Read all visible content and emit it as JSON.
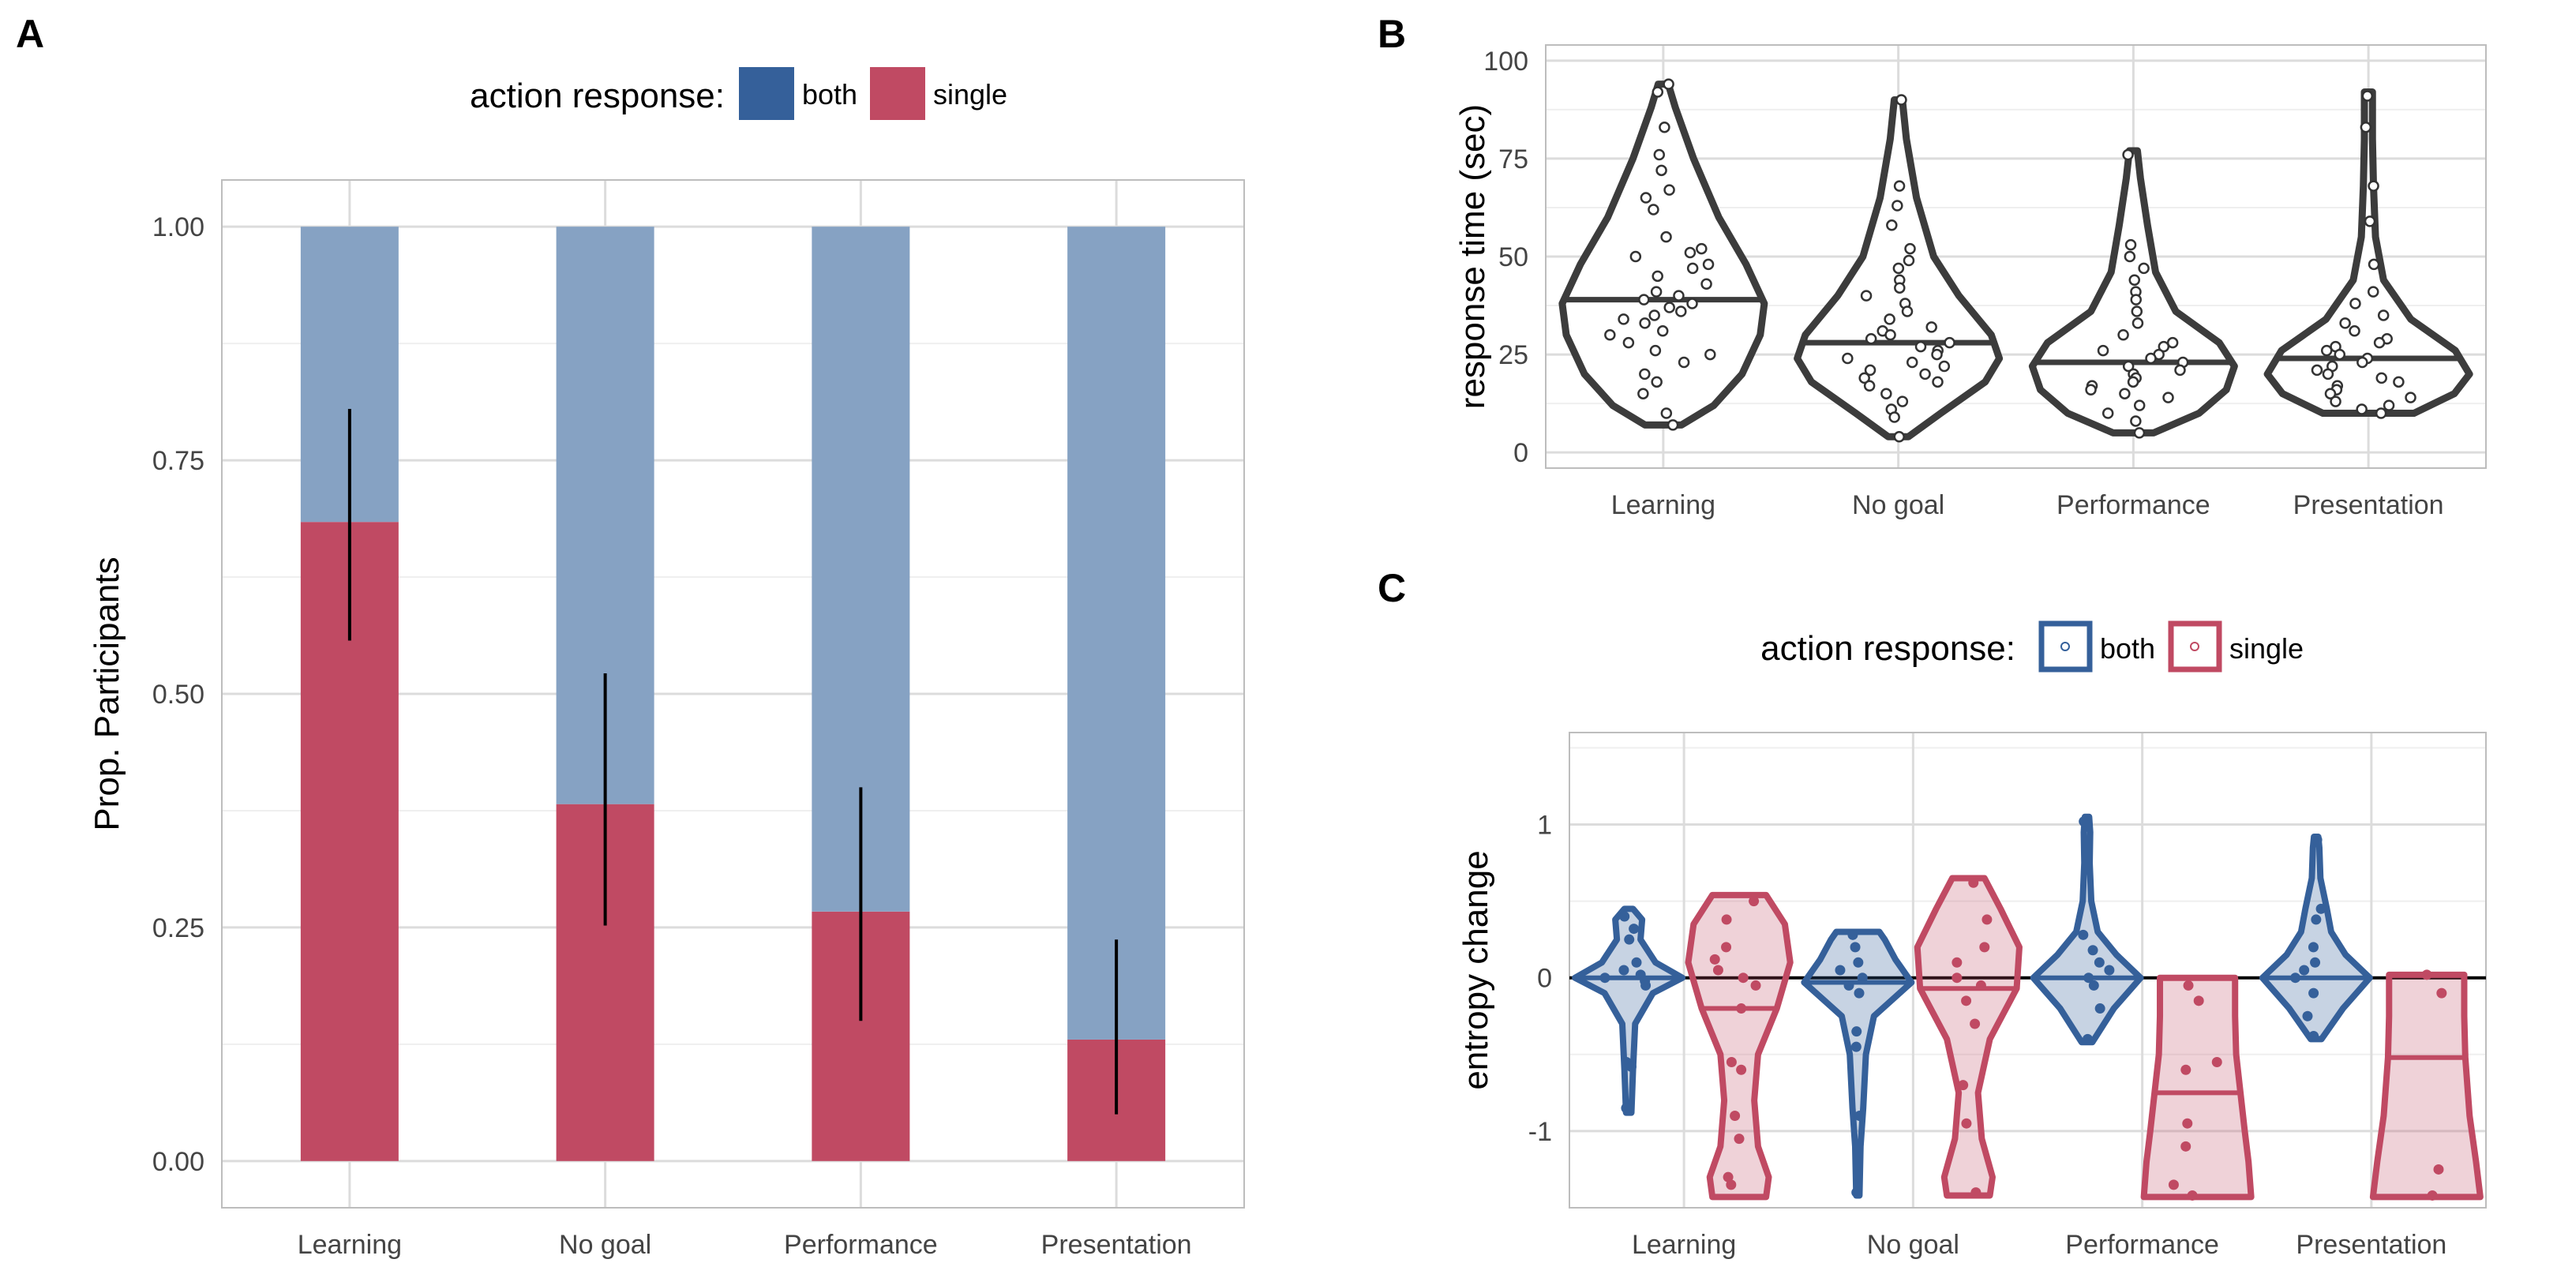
{
  "colors": {
    "both": "#35609A",
    "single": "#C04A63",
    "both_light": "#86A2C3",
    "grid": "#DCDCDC",
    "violin": "#3C3C3C"
  },
  "chart_data": [
    {
      "panel": "A",
      "type": "bar",
      "stacked": true,
      "legend": {
        "title": "action response:",
        "position": "top",
        "entries": [
          "both",
          "single"
        ]
      },
      "categories": [
        "Learning",
        "No goal",
        "Performance",
        "Presentation"
      ],
      "series": [
        {
          "name": "single",
          "values": [
            0.684,
            0.382,
            0.267,
            0.13
          ]
        },
        {
          "name": "both",
          "values": [
            0.316,
            0.618,
            0.733,
            0.87
          ]
        }
      ],
      "error_bars": [
        {
          "category": "Learning",
          "low": 0.557,
          "high": 0.805
        },
        {
          "category": "No goal",
          "low": 0.252,
          "high": 0.522
        },
        {
          "category": "Performance",
          "low": 0.15,
          "high": 0.4
        },
        {
          "category": "Presentation",
          "low": 0.05,
          "high": 0.237
        }
      ],
      "ylabel": "Prop. Participants",
      "ylim": [
        -0.05,
        1.05
      ],
      "yticks": [
        "0.00",
        "0.25",
        "0.50",
        "0.75",
        "1.00"
      ],
      "grid": true
    },
    {
      "panel": "B",
      "type": "violin",
      "categories": [
        "Learning",
        "No goal",
        "Performance",
        "Presentation"
      ],
      "ylabel": "response time (sec)",
      "ylim": [
        -4,
        104
      ],
      "yticks": [
        "0",
        "25",
        "50",
        "75",
        "100"
      ],
      "grid": true,
      "violins": [
        {
          "category": "Learning",
          "min": 7,
          "max": 94,
          "median": 39,
          "profile": [
            [
              7,
              0.18
            ],
            [
              12,
              0.5
            ],
            [
              20,
              0.78
            ],
            [
              30,
              0.96
            ],
            [
              38,
              1.0
            ],
            [
              48,
              0.82
            ],
            [
              60,
              0.55
            ],
            [
              75,
              0.3
            ],
            [
              88,
              0.12
            ],
            [
              94,
              0.05
            ]
          ]
        },
        {
          "category": "No goal",
          "min": 4,
          "max": 90,
          "median": 28,
          "profile": [
            [
              4,
              0.1
            ],
            [
              10,
              0.42
            ],
            [
              18,
              0.86
            ],
            [
              24,
              1.0
            ],
            [
              30,
              0.92
            ],
            [
              40,
              0.6
            ],
            [
              50,
              0.35
            ],
            [
              65,
              0.18
            ],
            [
              80,
              0.08
            ],
            [
              90,
              0.04
            ]
          ]
        },
        {
          "category": "Performance",
          "min": 5,
          "max": 77,
          "median": 23,
          "profile": [
            [
              5,
              0.2
            ],
            [
              10,
              0.65
            ],
            [
              16,
              0.92
            ],
            [
              22,
              1.0
            ],
            [
              28,
              0.85
            ],
            [
              36,
              0.42
            ],
            [
              46,
              0.22
            ],
            [
              58,
              0.14
            ],
            [
              70,
              0.07
            ],
            [
              77,
              0.04
            ]
          ]
        },
        {
          "category": "Presentation",
          "min": 10,
          "max": 92,
          "median": 24,
          "profile": [
            [
              10,
              0.45
            ],
            [
              15,
              0.85
            ],
            [
              20,
              1.0
            ],
            [
              26,
              0.86
            ],
            [
              34,
              0.42
            ],
            [
              44,
              0.15
            ],
            [
              55,
              0.07
            ],
            [
              68,
              0.05
            ],
            [
              80,
              0.04
            ],
            [
              92,
              0.04
            ]
          ]
        }
      ],
      "points": {
        "Learning": [
          94,
          92,
          83,
          76,
          72,
          67,
          65,
          62,
          55,
          52,
          51,
          50,
          48,
          47,
          45,
          43,
          41,
          40,
          39,
          38,
          37,
          36,
          35,
          34,
          33,
          31,
          30,
          28,
          26,
          25,
          23,
          20,
          18,
          15,
          10,
          7
        ],
        "No goal": [
          90,
          68,
          63,
          58,
          52,
          49,
          47,
          44,
          42,
          40,
          38,
          36,
          34,
          32,
          31,
          30,
          29,
          28,
          27,
          26,
          25,
          24,
          23,
          22,
          21,
          20,
          19,
          18,
          17,
          15,
          13,
          11,
          9,
          4
        ],
        "Performance": [
          76,
          53,
          50,
          47,
          44,
          41,
          39,
          36,
          33,
          30,
          28,
          27,
          26,
          25,
          24,
          23,
          22,
          21,
          20,
          19,
          18,
          17,
          16,
          15,
          14,
          12,
          10,
          8,
          5
        ],
        "Presentation": [
          91,
          83,
          68,
          59,
          48,
          41,
          38,
          35,
          33,
          31,
          29,
          28,
          27,
          26,
          25,
          24,
          23,
          22,
          21,
          20,
          19,
          18,
          17,
          16,
          15,
          14,
          13,
          12,
          11,
          10
        ]
      }
    },
    {
      "panel": "C",
      "type": "violin",
      "legend": {
        "title": "action response:",
        "position": "top",
        "entries": [
          "both",
          "single"
        ]
      },
      "categories": [
        "Learning",
        "No goal",
        "Performance",
        "Presentation"
      ],
      "ylabel": "entropy change",
      "ylim": [
        -1.5,
        1.6
      ],
      "yticks": [
        "-1",
        "0",
        "1"
      ],
      "hline": 0,
      "grid": true,
      "violins": [
        {
          "category": "Learning",
          "group": "both",
          "min": -0.88,
          "max": 0.45,
          "median": 0.0,
          "profile": [
            [
              -0.88,
              0.05
            ],
            [
              -0.6,
              0.08
            ],
            [
              -0.3,
              0.12
            ],
            [
              -0.1,
              0.45
            ],
            [
              0.0,
              1.0
            ],
            [
              0.1,
              0.5
            ],
            [
              0.25,
              0.22
            ],
            [
              0.38,
              0.25
            ],
            [
              0.45,
              0.08
            ]
          ]
        },
        {
          "category": "Learning",
          "group": "single",
          "min": -1.43,
          "max": 0.54,
          "median": -0.2,
          "profile": [
            [
              -1.43,
              0.5
            ],
            [
              -1.3,
              0.55
            ],
            [
              -1.1,
              0.35
            ],
            [
              -0.8,
              0.28
            ],
            [
              -0.5,
              0.35
            ],
            [
              -0.2,
              0.7
            ],
            [
              0.1,
              0.95
            ],
            [
              0.35,
              0.85
            ],
            [
              0.54,
              0.5
            ]
          ]
        },
        {
          "category": "No goal",
          "group": "both",
          "min": -1.42,
          "max": 0.3,
          "median": -0.03,
          "profile": [
            [
              -1.42,
              0.03
            ],
            [
              -1.1,
              0.05
            ],
            [
              -0.85,
              0.1
            ],
            [
              -0.5,
              0.15
            ],
            [
              -0.25,
              0.3
            ],
            [
              -0.03,
              1.0
            ],
            [
              0.12,
              0.7
            ],
            [
              0.25,
              0.5
            ],
            [
              0.3,
              0.4
            ]
          ]
        },
        {
          "category": "No goal",
          "group": "single",
          "min": -1.42,
          "max": 0.65,
          "median": -0.07,
          "profile": [
            [
              -1.42,
              0.4
            ],
            [
              -1.3,
              0.45
            ],
            [
              -1.05,
              0.25
            ],
            [
              -0.75,
              0.18
            ],
            [
              -0.4,
              0.4
            ],
            [
              -0.07,
              0.9
            ],
            [
              0.2,
              0.95
            ],
            [
              0.45,
              0.6
            ],
            [
              0.65,
              0.3
            ]
          ]
        },
        {
          "category": "Performance",
          "group": "both",
          "min": -0.42,
          "max": 1.05,
          "median": 0.0,
          "profile": [
            [
              -0.42,
              0.1
            ],
            [
              -0.2,
              0.5
            ],
            [
              0.0,
              1.0
            ],
            [
              0.15,
              0.55
            ],
            [
              0.3,
              0.2
            ],
            [
              0.5,
              0.08
            ],
            [
              0.75,
              0.05
            ],
            [
              0.95,
              0.06
            ],
            [
              1.05,
              0.04
            ]
          ]
        },
        {
          "category": "Performance",
          "group": "single",
          "min": -1.43,
          "max": 0.0,
          "median": -0.75,
          "profile": [
            [
              -1.43,
              1.0
            ],
            [
              -1.2,
              0.95
            ],
            [
              -1.0,
              0.88
            ],
            [
              -0.75,
              0.8
            ],
            [
              -0.5,
              0.72
            ],
            [
              -0.25,
              0.7
            ],
            [
              0.0,
              0.7
            ]
          ]
        },
        {
          "category": "Presentation",
          "group": "both",
          "min": -0.4,
          "max": 0.92,
          "median": 0.0,
          "profile": [
            [
              -0.4,
              0.1
            ],
            [
              -0.2,
              0.5
            ],
            [
              0.0,
              1.0
            ],
            [
              0.15,
              0.55
            ],
            [
              0.3,
              0.28
            ],
            [
              0.45,
              0.2
            ],
            [
              0.65,
              0.08
            ],
            [
              0.85,
              0.06
            ],
            [
              0.92,
              0.04
            ]
          ]
        },
        {
          "category": "Presentation",
          "group": "single",
          "min": -1.43,
          "max": 0.02,
          "median": -0.52,
          "profile": [
            [
              -1.43,
              1.0
            ],
            [
              -1.2,
              0.92
            ],
            [
              -0.9,
              0.8
            ],
            [
              -0.52,
              0.72
            ],
            [
              -0.25,
              0.7
            ],
            [
              0.02,
              0.7
            ]
          ]
        }
      ],
      "points": {
        "Learning|both": [
          0.4,
          0.32,
          0.25,
          0.1,
          0.05,
          0.02,
          0.0,
          -0.02,
          -0.05,
          -0.55,
          -0.58,
          -0.85
        ],
        "Learning|single": [
          0.5,
          0.38,
          0.2,
          0.12,
          0.05,
          0.0,
          -0.05,
          -0.2,
          -0.55,
          -0.6,
          -0.9,
          -1.05,
          -1.3,
          -1.35
        ],
        "No goal|both": [
          0.28,
          0.2,
          0.1,
          0.05,
          0.0,
          -0.05,
          -0.1,
          -0.35,
          -0.45,
          -0.9,
          -1.4
        ],
        "No goal|single": [
          0.62,
          0.38,
          0.2,
          0.1,
          0.0,
          -0.05,
          -0.15,
          -0.3,
          -0.7,
          -0.95,
          -1.4
        ],
        "Performance|both": [
          1.02,
          0.28,
          0.18,
          0.1,
          0.05,
          0.0,
          -0.05,
          -0.2,
          -0.4
        ],
        "Performance|single": [
          -0.05,
          -0.15,
          -0.55,
          -0.6,
          -0.95,
          -1.1,
          -1.35,
          -1.42
        ],
        "Presentation|both": [
          0.9,
          0.45,
          0.38,
          0.2,
          0.1,
          0.05,
          0.0,
          -0.1,
          -0.25,
          -0.38
        ],
        "Presentation|single": [
          0.02,
          -0.1,
          -1.25,
          -1.42
        ]
      }
    }
  ],
  "panels": {
    "A": "A",
    "B": "B",
    "C": "C"
  },
  "legendA": {
    "title": "action response:",
    "both": "both",
    "single": "single"
  },
  "legendC": {
    "title": "action response:",
    "both": "both",
    "single": "single"
  }
}
